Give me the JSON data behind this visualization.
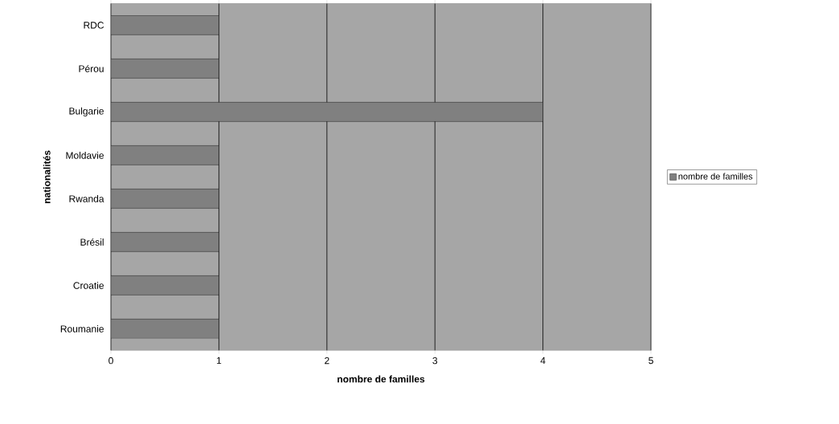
{
  "chart_data": {
    "type": "bar",
    "orientation": "horizontal",
    "xlabel": "nombre de familles",
    "ylabel": "nationalités",
    "categories": [
      "RDC",
      "Pérou",
      "Bulgarie",
      "Moldavie",
      "Rwanda",
      "Brésil",
      "Croatie",
      "Roumanie"
    ],
    "series": [
      {
        "name": "nombre de familles",
        "color": "#808080",
        "values": [
          1,
          1,
          4,
          1,
          1,
          1,
          1,
          1
        ]
      }
    ],
    "xlim": [
      0,
      5
    ],
    "xticks": [
      0,
      1,
      2,
      3,
      4,
      5
    ],
    "grid": "x",
    "legend": "right"
  }
}
